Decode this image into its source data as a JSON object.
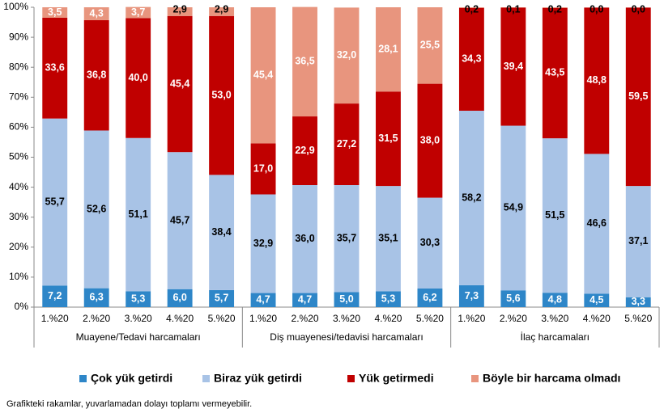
{
  "chart_data": {
    "type": "stacked-bar",
    "ylim": [
      0,
      100
    ],
    "yticks": [
      {
        "value": 0,
        "label": "0%"
      },
      {
        "value": 10,
        "label": "10%"
      },
      {
        "value": 20,
        "label": "20%"
      },
      {
        "value": 30,
        "label": "30%"
      },
      {
        "value": 40,
        "label": "40%"
      },
      {
        "value": 50,
        "label": "50%"
      },
      {
        "value": 60,
        "label": "60%"
      },
      {
        "value": 70,
        "label": "70%"
      },
      {
        "value": 80,
        "label": "80%"
      },
      {
        "value": 90,
        "label": "90%"
      },
      {
        "value": 100,
        "label": "100%"
      }
    ],
    "groups": [
      {
        "name": "Muayene/Tedavi harcamaları",
        "categories": [
          "1.%20",
          "2.%20",
          "3.%20",
          "4.%20",
          "5.%20"
        ]
      },
      {
        "name": "Diş muayenesi/tedavisi harcamaları",
        "categories": [
          "1.%20",
          "2.%20",
          "3.%20",
          "4.%20",
          "5.%20"
        ]
      },
      {
        "name": "İlaç harcamaları",
        "categories": [
          "1.%20",
          "2.%20",
          "3.%20",
          "4.%20",
          "5.%20"
        ]
      }
    ],
    "series": [
      {
        "name": "Çok yük getirdi",
        "color": "#2e86c8",
        "values": [
          7.2,
          6.3,
          5.3,
          6.0,
          5.7,
          4.7,
          4.7,
          5.0,
          5.3,
          6.2,
          7.3,
          5.6,
          4.8,
          4.5,
          3.3
        ],
        "value_labels": [
          "7,2",
          "6,3",
          "5,3",
          "6,0",
          "5,7",
          "4,7",
          "4,7",
          "5,0",
          "5,3",
          "6,2",
          "7,3",
          "5,6",
          "4,8",
          "4,5",
          "3,3"
        ]
      },
      {
        "name": "Biraz yük getirdi",
        "color": "#a8c3e6",
        "values": [
          55.7,
          52.6,
          51.1,
          45.7,
          38.4,
          32.9,
          36.0,
          35.7,
          35.1,
          30.3,
          58.2,
          54.9,
          51.5,
          46.6,
          37.1
        ],
        "value_labels": [
          "55,7",
          "52,6",
          "51,1",
          "45,7",
          "38,4",
          "32,9",
          "36,0",
          "35,7",
          "35,1",
          "30,3",
          "58,2",
          "54,9",
          "51,5",
          "46,6",
          "37,1"
        ]
      },
      {
        "name": "Yük getirmedi",
        "color": "#c00000",
        "values": [
          33.6,
          36.8,
          40.0,
          45.4,
          53.0,
          17.0,
          22.9,
          27.2,
          31.5,
          38.0,
          34.3,
          39.4,
          43.5,
          48.8,
          59.5
        ],
        "value_labels": [
          "33,6",
          "36,8",
          "40,0",
          "45,4",
          "53,0",
          "17,0",
          "22,9",
          "27,2",
          "31,5",
          "38,0",
          "34,3",
          "39,4",
          "43,5",
          "48,8",
          "59,5"
        ]
      },
      {
        "name": "Böyle bir harcama olmadı",
        "color": "#e8957e",
        "values": [
          3.5,
          4.3,
          3.7,
          2.9,
          2.9,
          45.4,
          36.5,
          32.0,
          28.1,
          25.5,
          0.2,
          0.1,
          0.2,
          0.0,
          0.0
        ],
        "value_labels": [
          "3,5",
          "4,3",
          "3,7",
          "2,9",
          "2,9",
          "45,4",
          "36,5",
          "32,0",
          "28,1",
          "25,5",
          "0,2",
          "0,1",
          "0,2",
          "0,0",
          "0,0"
        ]
      }
    ],
    "note": "Grafikteki rakamlar, yuvarlamadan dolayı toplamı vermeyebilir."
  }
}
